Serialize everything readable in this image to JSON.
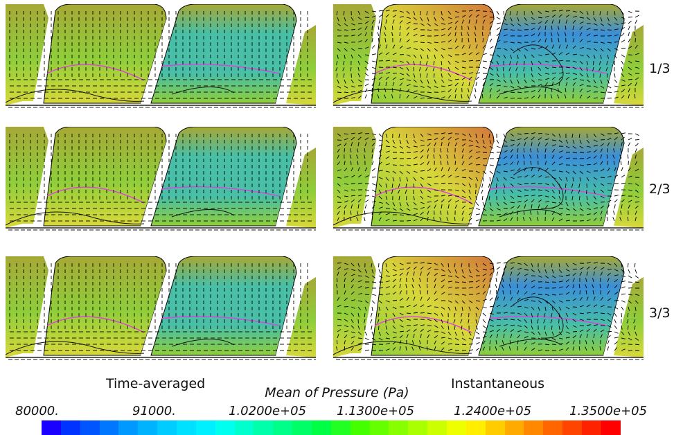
{
  "row_labels": [
    "1/3",
    "2/3",
    "3/3"
  ],
  "column_captions": {
    "left": "Time-averaged",
    "right": "Instantaneous"
  },
  "colorbar": {
    "title": "Mean of Pressure (Pa)",
    "ticks": [
      "80000.",
      "91000.",
      "1.0200e+05",
      "1.1300e+05",
      "1.2400e+05",
      "1.3500e+05"
    ],
    "colors": [
      "#1a00ff",
      "#0033ff",
      "#0055ff",
      "#0077ff",
      "#0099ff",
      "#00b3ff",
      "#00ccff",
      "#00e0ff",
      "#00f0ff",
      "#00ffee",
      "#00ffcc",
      "#00ffaa",
      "#00ff88",
      "#00ff66",
      "#00ff44",
      "#22ff22",
      "#44ff00",
      "#66ff00",
      "#88ff00",
      "#aaff00",
      "#ccff00",
      "#eeff00",
      "#ffee00",
      "#ffcc00",
      "#ffaa00",
      "#ff8800",
      "#ff6600",
      "#ff4400",
      "#ff2200",
      "#ff0000"
    ]
  },
  "panel_colors": {
    "olive": "#a6a836",
    "teal": "#48bfa6",
    "green": "#8fce3a",
    "yellow": "#d8d83a",
    "orange": "#d2783a",
    "blue": "#3a8fd8",
    "contour_magenta": "#e040e0",
    "contour_black": "#111111"
  }
}
